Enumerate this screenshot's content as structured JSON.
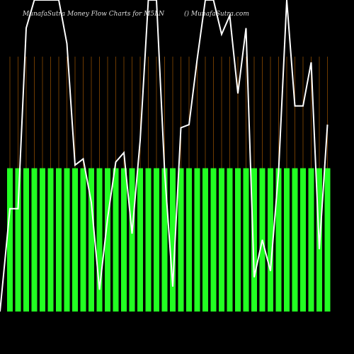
{
  "chart_data": {
    "type": "bar-line",
    "title": "MunafaSutra  Money Flow  Charts for M5LN",
    "subtitle": "() MunafaSutra.com",
    "ylim": [
      0,
      100
    ],
    "series": [
      {
        "type": "bar",
        "color": "#22ff22",
        "values": [
          46,
          46,
          46,
          46,
          46,
          46,
          46,
          46,
          46,
          46,
          46,
          46,
          46,
          46,
          46,
          46,
          46,
          46,
          46,
          46,
          46,
          46,
          46,
          46,
          46,
          46,
          46,
          46,
          46,
          46,
          46,
          46,
          46,
          46,
          46,
          46,
          46,
          46,
          46,
          46
        ]
      },
      {
        "type": "line",
        "color": "#ffffff",
        "values": [
          33,
          33,
          91,
          100,
          100,
          100,
          100,
          86,
          47,
          49,
          35,
          7,
          30,
          48,
          51,
          25,
          55,
          100,
          100,
          45,
          8,
          59,
          60,
          81,
          100,
          100,
          89,
          95,
          70,
          91,
          11,
          23,
          13,
          45,
          100,
          66,
          66,
          80,
          20,
          60
        ]
      }
    ]
  }
}
